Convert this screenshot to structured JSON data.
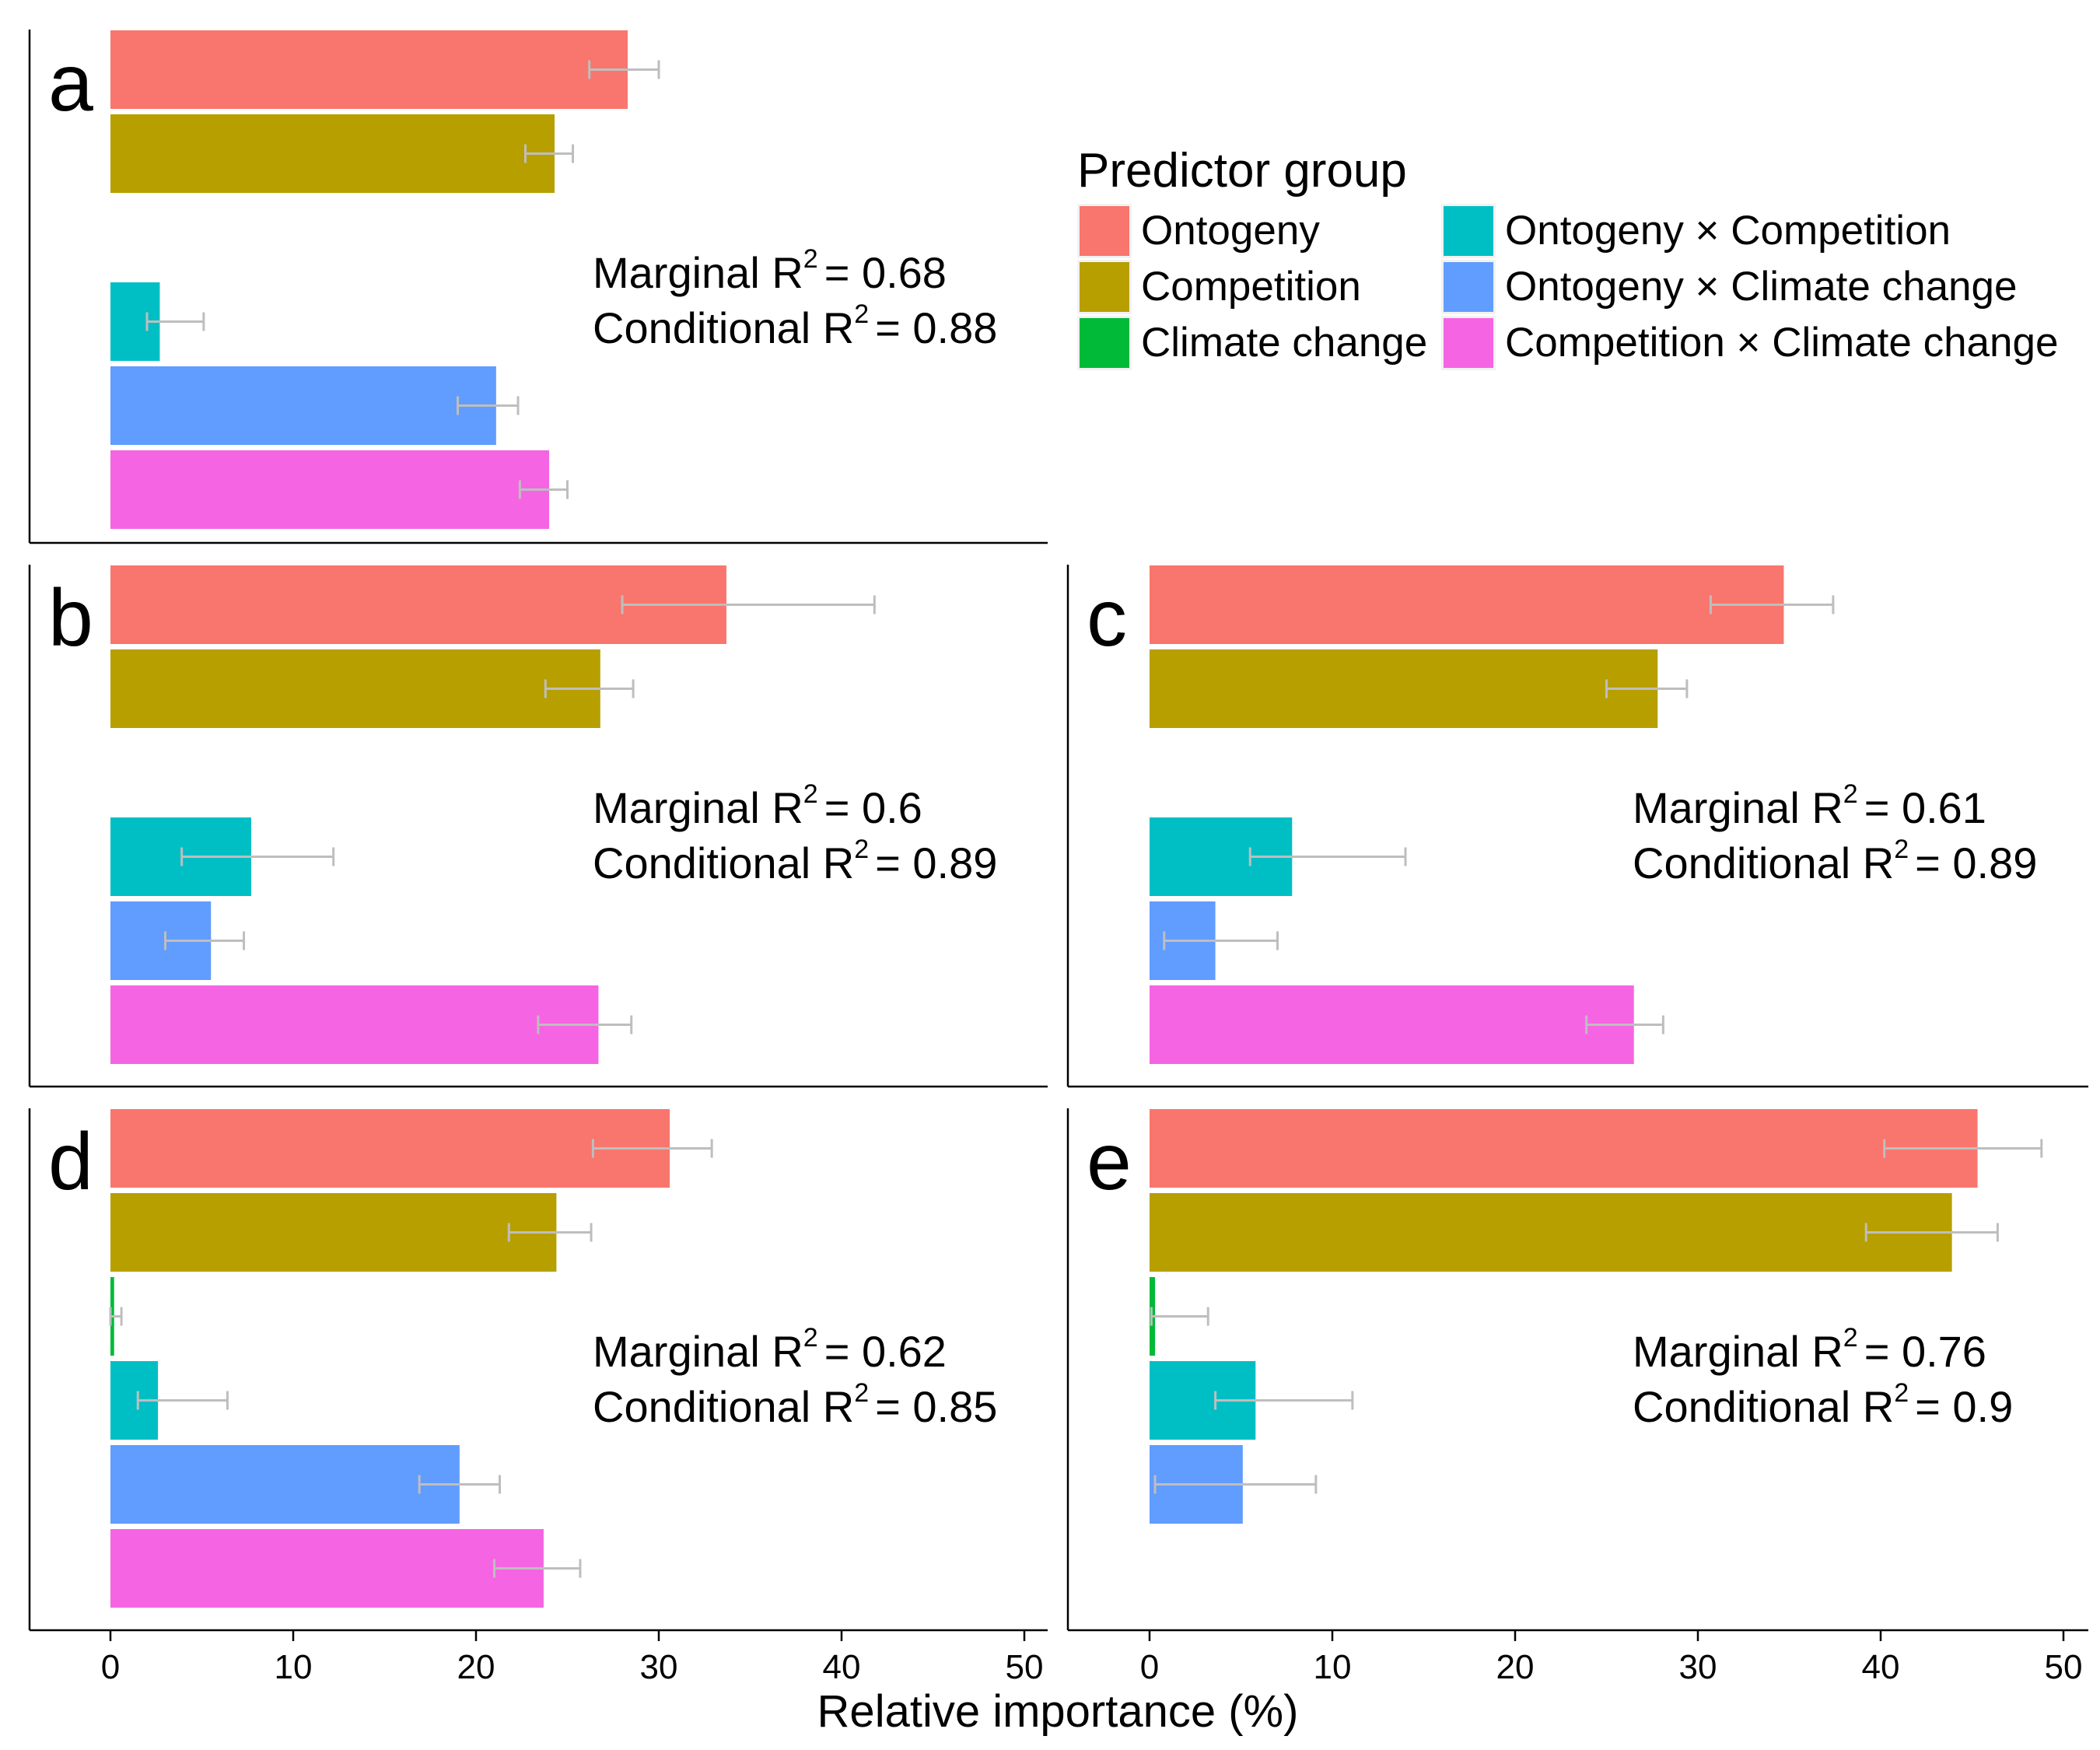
{
  "legend": {
    "title": "Predictor group",
    "items": [
      {
        "label": "Ontogeny",
        "color": "#F8766D"
      },
      {
        "label": "Competition",
        "color": "#B79F00"
      },
      {
        "label": "Climate change",
        "color": "#00BA38"
      },
      {
        "label": "Ontogeny × Competition",
        "color": "#00BFC4"
      },
      {
        "label": "Ontogeny × Climate change",
        "color": "#619CFF"
      },
      {
        "label": "Competition × Climate change",
        "color": "#F564E3"
      }
    ]
  },
  "chart_data": {
    "type": "bar",
    "orientation": "horizontal",
    "xlabel": "Relative importance (%)",
    "xlim": [
      0,
      50
    ],
    "xticks": [
      0,
      10,
      20,
      30,
      40,
      50
    ],
    "error_bar_color": "#BEBEBE",
    "categories": [
      "Ontogeny",
      "Competition",
      "Climate change",
      "Ontogeny × Competition",
      "Ontogeny × Climate change",
      "Competition × Climate change"
    ],
    "panels": [
      {
        "letter": "a",
        "marginal_label": "Marginal R",
        "marginal_value": "= 0.68",
        "conditional_label": "Conditional R",
        "conditional_value": "= 0.88",
        "bars": [
          {
            "category": "Ontogeny",
            "value": 28.3,
            "err": [
              26.2,
              30.0
            ]
          },
          {
            "category": "Competition",
            "value": 24.3,
            "err": [
              22.7,
              25.3
            ]
          },
          {
            "category": "Climate change",
            "value": null,
            "err": null
          },
          {
            "category": "Ontogeny × Competition",
            "value": 2.7,
            "err": [
              2.0,
              5.1
            ]
          },
          {
            "category": "Ontogeny × Climate change",
            "value": 21.1,
            "err": [
              19.0,
              22.3
            ]
          },
          {
            "category": "Competition × Climate change",
            "value": 24.0,
            "err": [
              22.4,
              25.0
            ]
          }
        ]
      },
      {
        "letter": "b",
        "marginal_label": "Marginal R",
        "marginal_value": "= 0.6",
        "conditional_label": "Conditional R",
        "conditional_value": "= 0.89",
        "bars": [
          {
            "category": "Ontogeny",
            "value": 33.7,
            "err": [
              28.0,
              41.8
            ]
          },
          {
            "category": "Competition",
            "value": 26.8,
            "err": [
              23.8,
              28.6
            ]
          },
          {
            "category": "Climate change",
            "value": null,
            "err": null
          },
          {
            "category": "Ontogeny × Competition",
            "value": 7.7,
            "err": [
              3.9,
              12.2
            ]
          },
          {
            "category": "Ontogeny × Climate change",
            "value": 5.5,
            "err": [
              3.0,
              7.3
            ]
          },
          {
            "category": "Competition × Climate change",
            "value": 26.7,
            "err": [
              23.4,
              28.5
            ]
          }
        ]
      },
      {
        "letter": "c",
        "marginal_label": "Marginal R",
        "marginal_value": "= 0.61",
        "conditional_label": "Conditional R",
        "conditional_value": "= 0.89",
        "bars": [
          {
            "category": "Ontogeny",
            "value": 34.7,
            "err": [
              30.7,
              37.4
            ]
          },
          {
            "category": "Competition",
            "value": 27.8,
            "err": [
              25.0,
              29.4
            ]
          },
          {
            "category": "Climate change",
            "value": null,
            "err": null
          },
          {
            "category": "Ontogeny × Competition",
            "value": 7.8,
            "err": [
              5.5,
              14.0
            ]
          },
          {
            "category": "Ontogeny × Climate change",
            "value": 3.6,
            "err": [
              0.8,
              7.0
            ]
          },
          {
            "category": "Competition × Climate change",
            "value": 26.5,
            "err": [
              23.9,
              28.1
            ]
          }
        ]
      },
      {
        "letter": "d",
        "marginal_label": "Marginal R",
        "marginal_value": "= 0.62",
        "conditional_label": "Conditional R",
        "conditional_value": "= 0.85",
        "bars": [
          {
            "category": "Ontogeny",
            "value": 30.6,
            "err": [
              26.4,
              32.9
            ]
          },
          {
            "category": "Competition",
            "value": 24.4,
            "err": [
              21.8,
              26.3
            ]
          },
          {
            "category": "Climate change",
            "value": 0.2,
            "err": [
              0.0,
              0.6
            ]
          },
          {
            "category": "Ontogeny × Competition",
            "value": 2.6,
            "err": [
              1.5,
              6.4
            ]
          },
          {
            "category": "Ontogeny × Climate change",
            "value": 19.1,
            "err": [
              16.9,
              21.3
            ]
          },
          {
            "category": "Competition × Climate change",
            "value": 23.7,
            "err": [
              21.0,
              25.7
            ]
          }
        ]
      },
      {
        "letter": "e",
        "marginal_label": "Marginal R",
        "marginal_value": "= 0.76",
        "conditional_label": "Conditional R",
        "conditional_value": "= 0.9",
        "bars": [
          {
            "category": "Ontogeny",
            "value": 45.3,
            "err": [
              40.2,
              48.8
            ]
          },
          {
            "category": "Competition",
            "value": 43.9,
            "err": [
              39.2,
              46.4
            ]
          },
          {
            "category": "Climate change",
            "value": 0.3,
            "err": [
              0.1,
              3.2
            ]
          },
          {
            "category": "Ontogeny × Competition",
            "value": 5.8,
            "err": [
              3.6,
              11.1
            ]
          },
          {
            "category": "Ontogeny × Climate change",
            "value": 5.1,
            "err": [
              0.3,
              9.1
            ]
          },
          {
            "category": "Competition × Climate change",
            "value": null,
            "err": null
          }
        ]
      }
    ]
  }
}
